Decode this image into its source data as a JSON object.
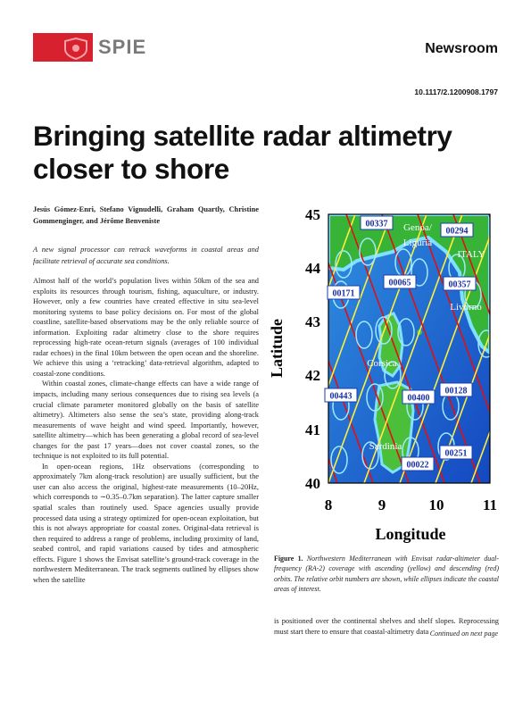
{
  "header": {
    "brand": "SPIE",
    "section": "Newsroom",
    "doi": "10.1117/2.1200908.1797"
  },
  "article": {
    "title": "Bringing satellite radar altimetry closer to shore",
    "authors": "Jesús Gómez-Enri, Stefano Vignudelli, Graham Quartly, Christine Gommenginger, and Jérôme Benveniste",
    "abstract": "A new signal processor can retrack waveforms in coastal areas and facilitate retrieval of accurate sea conditions.",
    "paragraphs": [
      "Almost half of the world’s population lives within 50km of the sea and exploits its resources through tourism, fishing, aquaculture, or industry. However, only a few countries have created effective in situ sea-level monitoring systems to base policy decisions on. For most of the global coastline, satellite-based observations may be the only reliable source of information. Exploiting radar altimetry close to the shore requires reprocessing high-rate ocean-return signals (averages of 100 individual radar echoes) in the final 10km between the open ocean and the shoreline. We achieve this using a ‘retracking’ data-retrieval algorithm, adapted to coastal-zone conditions.",
      "Within coastal zones, climate-change effects can have a wide range of impacts, including many serious consequences due to rising sea levels (a crucial climate parameter monitored globally on the basis of satellite altimetry). Altimeters also sense the sea’s state, providing along-track measurements of wave height and wind speed. Importantly, however, satellite altimetry—which has been generating a global record of sea-level changes for the past 17 years—does not cover coastal zones, so the technique is not exploited to its full potential.",
      "In open-ocean regions, 1Hz observations (corresponding to approximately 7km along-track resolution) are usually sufficient, but the user can also access the original, highest-rate measurements (10–20Hz, which corresponds to ∼0.35–0.7km separation). The latter capture smaller spatial scales than routinely used. Space agencies usually provide processed data using a strategy optimized for open-ocean exploitation, but this is not always appropriate for coastal zones. Original-data retrieval is then required to address a range of problems, including proximity of land, seabed control, and rapid variations caused by tides and atmospheric effects. Figure 1 shows the Envisat satellite’s ground-track coverage in the northwestern Mediterranean. The track segments outlined by ellipses show when the satellite"
    ],
    "continuation": "is positioned over the continental shelves and shelf slopes. Reprocessing must start there to ensure that coastal-altimetry data",
    "continued": "Continued on next page"
  },
  "figure": {
    "y_label": "Latitude",
    "x_label": "Longitude",
    "yticks": [
      "45",
      "44",
      "43",
      "42",
      "41",
      "40"
    ],
    "xticks": [
      "8",
      "9",
      "10",
      "11"
    ],
    "track_labels": [
      "00337",
      "00294",
      "00171",
      "00065",
      "00357",
      "00443",
      "00400",
      "00128",
      "00251",
      "00022"
    ],
    "place_labels": [
      "Genoa/",
      "Liguria",
      "ITALY",
      "Livorno",
      "Corsica",
      "Sardinia"
    ],
    "caption_label": "Figure 1.",
    "caption": "Northwestern Mediterranean with Envisat radar-altimeter dual-frequency (RA-2) coverage with ascending (yellow) and descending (red) orbits. The relative orbit numbers are shown, while ellipses indicate the coastal areas of interest."
  }
}
